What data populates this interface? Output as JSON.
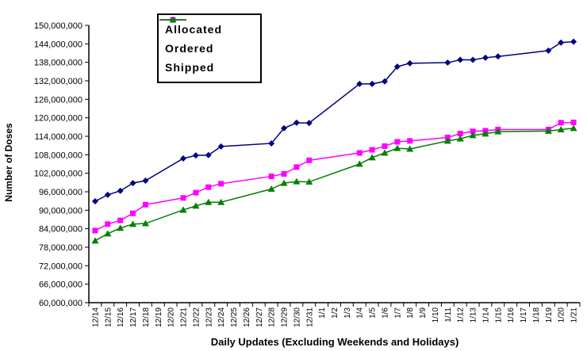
{
  "chart_data": {
    "type": "line",
    "title": "",
    "xlabel": "Daily Updates (Excluding Weekends and Holidays)",
    "ylabel": "Number of Doses",
    "ylim": [
      60000000,
      150000000
    ],
    "ytick_step": 6000000,
    "grid": false,
    "legend_position": "top-inside-left",
    "legend_border_color": "#000000",
    "legend_background": "#FFFFFF",
    "axis_color": "#000000",
    "y_ticks": [
      {
        "value": 60000000,
        "label": "60,000,000"
      },
      {
        "value": 66000000,
        "label": "66,000,000"
      },
      {
        "value": 72000000,
        "label": "72,000,000"
      },
      {
        "value": 78000000,
        "label": "78,000,000"
      },
      {
        "value": 84000000,
        "label": "84,000,000"
      },
      {
        "value": 90000000,
        "label": "90,000,000"
      },
      {
        "value": 96000000,
        "label": "96,000,000"
      },
      {
        "value": 102000000,
        "label": "102,000,000"
      },
      {
        "value": 108000000,
        "label": "108,000,000"
      },
      {
        "value": 114000000,
        "label": "114,000,000"
      },
      {
        "value": 120000000,
        "label": "120,000,000"
      },
      {
        "value": 126000000,
        "label": "126,000,000"
      },
      {
        "value": 132000000,
        "label": "132,000,000"
      },
      {
        "value": 138000000,
        "label": "138,000,000"
      },
      {
        "value": 144000000,
        "label": "144,000,000"
      },
      {
        "value": 150000000,
        "label": "150,000,000"
      }
    ],
    "categories": [
      "12/14",
      "12/15",
      "12/16",
      "12/17",
      "12/18",
      "12/19",
      "12/20",
      "12/21",
      "12/22",
      "12/23",
      "12/24",
      "12/25",
      "12/26",
      "12/27",
      "12/28",
      "12/29",
      "12/30",
      "12/31",
      "1/1",
      "1/2",
      "1/3",
      "1/4",
      "1/5",
      "1/6",
      "1/7",
      "1/8",
      "1/9",
      "1/10",
      "1/11",
      "1/12",
      "1/13",
      "1/14",
      "1/15",
      "1/16",
      "1/17",
      "1/18",
      "1/19",
      "1/20",
      "1/21"
    ],
    "point_dates": [
      "12/14",
      "12/15",
      "12/16",
      "12/17",
      "12/18",
      "12/21",
      "12/22",
      "12/23",
      "12/24",
      "12/28",
      "12/29",
      "12/30",
      "12/31",
      "1/4",
      "1/5",
      "1/6",
      "1/7",
      "1/8",
      "1/11",
      "1/12",
      "1/13",
      "1/14",
      "1/15",
      "1/19",
      "1/20",
      "1/21"
    ],
    "series": [
      {
        "name": "Allocated",
        "color": "#000080",
        "marker": "diamond",
        "values": [
          92900000,
          95000000,
          96300000,
          98800000,
          99600000,
          106800000,
          107800000,
          107900000,
          110700000,
          111700000,
          116600000,
          118400000,
          118300000,
          131000000,
          131000000,
          131800000,
          136600000,
          137700000,
          137900000,
          138800000,
          138800000,
          139500000,
          139900000,
          141800000,
          144400000,
          144700000
        ]
      },
      {
        "name": "Ordered",
        "color": "#FF00FF",
        "marker": "square",
        "values": [
          83400000,
          85500000,
          86700000,
          89000000,
          91800000,
          94000000,
          95700000,
          97500000,
          98600000,
          101000000,
          101800000,
          104000000,
          106200000,
          108600000,
          109600000,
          110800000,
          112200000,
          112500000,
          113600000,
          114900000,
          115600000,
          115800000,
          116200000,
          116200000,
          118400000,
          118500000
        ]
      },
      {
        "name": "Shipped",
        "color": "#008000",
        "marker": "triangle",
        "values": [
          80100000,
          82400000,
          84200000,
          85500000,
          85700000,
          90100000,
          91400000,
          92600000,
          92600000,
          96900000,
          98800000,
          99300000,
          99200000,
          105000000,
          107100000,
          108600000,
          110100000,
          109900000,
          112500000,
          113200000,
          114300000,
          114800000,
          115500000,
          115700000,
          116200000,
          116600000
        ]
      }
    ]
  }
}
